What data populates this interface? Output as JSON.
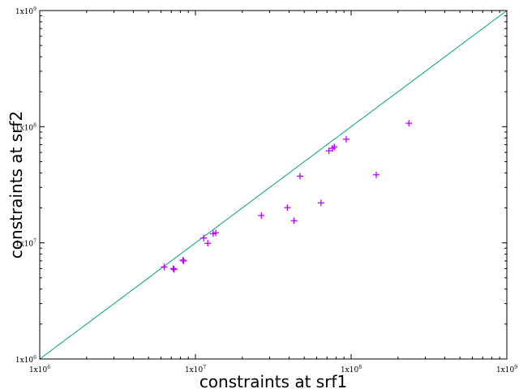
{
  "chart_data": {
    "type": "scatter",
    "title": "",
    "xlabel": "constraints at srf1",
    "ylabel": "constraints at srf2",
    "xscale": "log",
    "yscale": "log",
    "xlim": [
      1000000,
      1000000000
    ],
    "ylim": [
      1000000,
      1000000000
    ],
    "x_ticks": [
      {
        "base": "1x10",
        "exp": "6",
        "value": 1000000
      },
      {
        "base": "1x10",
        "exp": "7",
        "value": 10000000
      },
      {
        "base": "1x10",
        "exp": "8",
        "value": 100000000
      },
      {
        "base": "1x10",
        "exp": "9",
        "value": 1000000000
      }
    ],
    "y_ticks": [
      {
        "base": "1x10",
        "exp": "6",
        "value": 1000000
      },
      {
        "base": "1x10",
        "exp": "7",
        "value": 10000000
      },
      {
        "base": "1x10",
        "exp": "8",
        "value": 100000000
      },
      {
        "base": "1x10",
        "exp": "9",
        "value": 1000000000
      }
    ],
    "grid": false,
    "marker": "+",
    "marker_color": "#bf00ff",
    "reference_line": {
      "from": [
        1000000,
        1000000
      ],
      "to": [
        1000000000,
        1000000000
      ],
      "color": "#00a080"
    },
    "series": [
      {
        "points": [
          [
            6300000,
            6200000
          ],
          [
            7200000,
            6000000
          ],
          [
            7300000,
            5900000
          ],
          [
            8300000,
            7100000
          ],
          [
            8400000,
            7000000
          ],
          [
            11300000,
            11000000
          ],
          [
            12000000,
            9900000
          ],
          [
            13000000,
            12000000
          ],
          [
            13500000,
            12200000
          ],
          [
            26500000,
            17200000
          ],
          [
            39000000,
            20100000
          ],
          [
            43000000,
            15500000
          ],
          [
            47000000,
            37500000
          ],
          [
            64000000,
            22100000
          ],
          [
            72000000,
            62000000
          ],
          [
            76000000,
            65000000
          ],
          [
            78000000,
            67000000
          ],
          [
            93000000,
            78000000
          ],
          [
            145000000,
            38500000
          ],
          [
            235000000,
            107000000
          ]
        ]
      }
    ]
  }
}
